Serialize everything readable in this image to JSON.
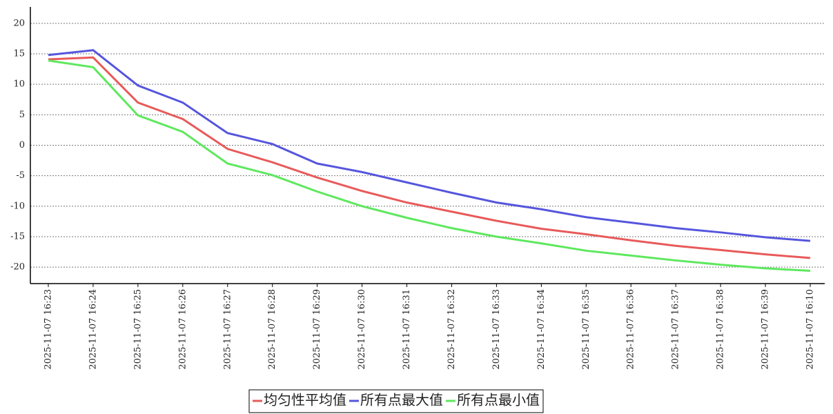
{
  "chart_data": {
    "type": "line",
    "categories": [
      "2025-11-07 16:23",
      "2025-11-07 16:24",
      "2025-11-07 16:25",
      "2025-11-07 16:26",
      "2025-11-07 16:27",
      "2025-11-07 16:28",
      "2025-11-07 16:29",
      "2025-11-07 16:30",
      "2025-11-07 16:31",
      "2025-11-07 16:32",
      "2025-11-07 16:33",
      "2025-11-07 16:34",
      "2025-11-07 16:35",
      "2025-11-07 16:36",
      "2025-11-07 16:37",
      "2025-11-07 16:38",
      "2025-11-07 16:39",
      "2025-11-07 16:10"
    ],
    "series": [
      {
        "name": "均匀性平均值",
        "color": "#e85a5a",
        "values": [
          14.1,
          14.4,
          7.0,
          4.3,
          -0.6,
          -2.8,
          -5.3,
          -7.5,
          -9.4,
          -10.9,
          -12.4,
          -13.7,
          -14.6,
          -15.6,
          -16.5,
          -17.2,
          -17.9,
          -18.5
        ]
      },
      {
        "name": "所有点最大值",
        "color": "#5555dd",
        "values": [
          14.8,
          15.6,
          9.8,
          7.0,
          2.0,
          0.2,
          -3.0,
          -4.4,
          -6.1,
          -7.8,
          -9.4,
          -10.5,
          -11.8,
          -12.7,
          -13.6,
          -14.3,
          -15.1,
          -15.7
        ]
      },
      {
        "name": "所有点最小值",
        "color": "#5de85d",
        "values": [
          13.9,
          12.8,
          4.9,
          2.2,
          -3.0,
          -4.9,
          -7.6,
          -10.0,
          -11.9,
          -13.6,
          -15.0,
          -16.1,
          -17.3,
          -18.1,
          -18.9,
          -19.6,
          -20.2,
          -20.6
        ]
      }
    ],
    "ylim": [
      -22.7,
      22.7
    ],
    "yticks": [
      -20,
      -15,
      -10,
      -5,
      0,
      5,
      10,
      15,
      20
    ],
    "grid": true,
    "legend": "bottom"
  }
}
